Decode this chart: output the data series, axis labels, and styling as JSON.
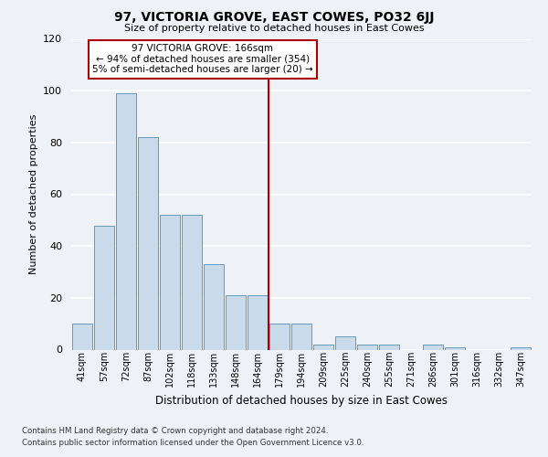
{
  "title": "97, VICTORIA GROVE, EAST COWES, PO32 6JJ",
  "subtitle": "Size of property relative to detached houses in East Cowes",
  "xlabel": "Distribution of detached houses by size in East Cowes",
  "ylabel": "Number of detached properties",
  "categories": [
    "41sqm",
    "57sqm",
    "72sqm",
    "87sqm",
    "102sqm",
    "118sqm",
    "133sqm",
    "148sqm",
    "164sqm",
    "179sqm",
    "194sqm",
    "209sqm",
    "225sqm",
    "240sqm",
    "255sqm",
    "271sqm",
    "286sqm",
    "301sqm",
    "316sqm",
    "332sqm",
    "347sqm"
  ],
  "values": [
    10,
    48,
    99,
    82,
    52,
    52,
    33,
    21,
    21,
    10,
    10,
    2,
    5,
    2,
    2,
    0,
    2,
    1,
    0,
    0,
    1
  ],
  "bar_color": "#c9daea",
  "bar_edge_color": "#6699bb",
  "vline_x": 8.5,
  "vline_color": "#aa0000",
  "annotation_text": "97 VICTORIA GROVE: 166sqm\n← 94% of detached houses are smaller (354)\n5% of semi-detached houses are larger (20) →",
  "annotation_box_color": "#aa0000",
  "annotation_fill_color": "#ffffff",
  "ylim": [
    0,
    120
  ],
  "yticks": [
    0,
    20,
    40,
    60,
    80,
    100,
    120
  ],
  "footer_line1": "Contains HM Land Registry data © Crown copyright and database right 2024.",
  "footer_line2": "Contains public sector information licensed under the Open Government Licence v3.0.",
  "background_color": "#eef2f7",
  "grid_color": "#ffffff"
}
